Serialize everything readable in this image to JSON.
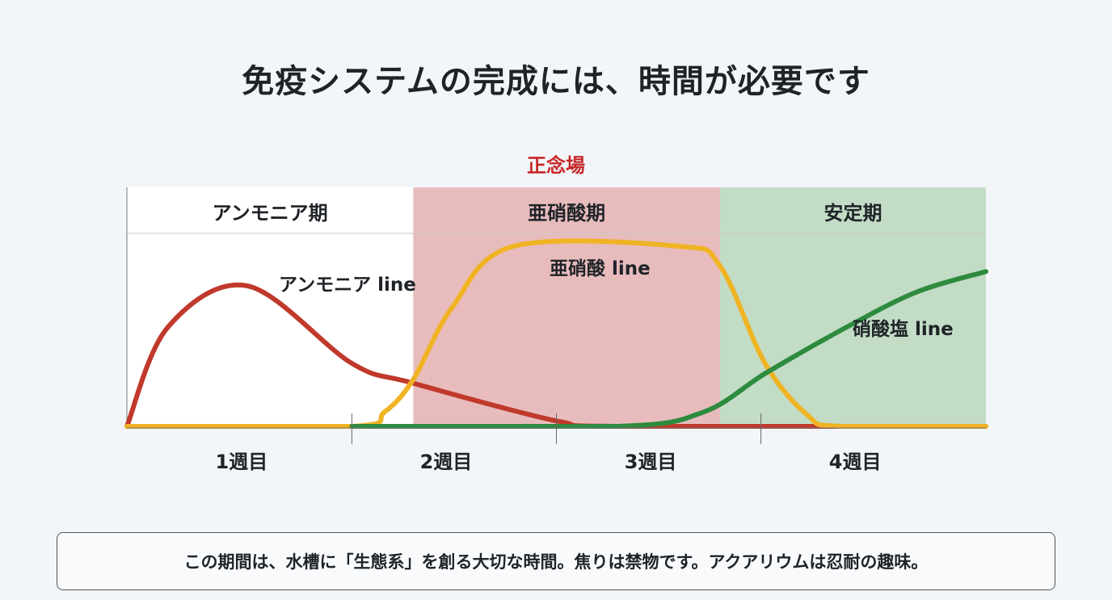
{
  "title": "免疫システムの完成には、時間が必要です",
  "chart_data": {
    "type": "line",
    "title": "",
    "xlabel": "",
    "ylabel": "",
    "xlim": [
      -0.1,
      4.1
    ],
    "ylim": [
      0,
      130
    ],
    "grid": false,
    "highlight_label": "正念場",
    "highlight_color": "#c62828",
    "x_tick_labels": [
      {
        "label": "1週目",
        "x": 0.5
      },
      {
        "label": "2週目",
        "x": 1.5
      },
      {
        "label": "3週目",
        "x": 2.5
      },
      {
        "label": "4週目",
        "x": 3.5
      }
    ],
    "x_ticks": [
      1,
      2,
      3
    ],
    "phases": [
      {
        "label": "アンモニア期",
        "from": -0.1,
        "to": 1.3,
        "color": "#ffffff"
      },
      {
        "label": "亜硝酸期",
        "from": 1.3,
        "to": 2.8,
        "color": "#e8bcbc"
      },
      {
        "label": "安定期",
        "from": 2.8,
        "to": 4.1,
        "color": "#c3dcc6"
      }
    ],
    "series": [
      {
        "name": "アンモニア line",
        "color": "#c0392b",
        "x": [
          -0.1,
          0.1,
          0.49,
          1.0,
          1.3,
          2.0,
          2.3,
          4.1
        ],
        "y": [
          0,
          55,
          78,
          35,
          24,
          3,
          0,
          0
        ]
      },
      {
        "name": "亜硝酸 line",
        "color": "#f0b323",
        "x": [
          -0.1,
          1.0,
          1.16,
          1.3,
          1.49,
          1.79,
          2.6,
          2.8,
          3.02,
          3.23,
          3.39,
          4.1
        ],
        "y": [
          0,
          0,
          8,
          26,
          66,
          100,
          100,
          89,
          35,
          6,
          0,
          0
        ]
      },
      {
        "name": "硝酸塩 line",
        "color": "#2e8b3e",
        "x": [
          1.0,
          2.3,
          2.72,
          3.03,
          3.45,
          3.77,
          4.1
        ],
        "y": [
          0,
          0,
          8,
          30,
          57,
          75,
          86
        ]
      }
    ]
  },
  "note": "この期間は、水槽に「生態系」を創る大切な時間。焦りは禁物です。アクアリウムは忍耐の趣味。"
}
